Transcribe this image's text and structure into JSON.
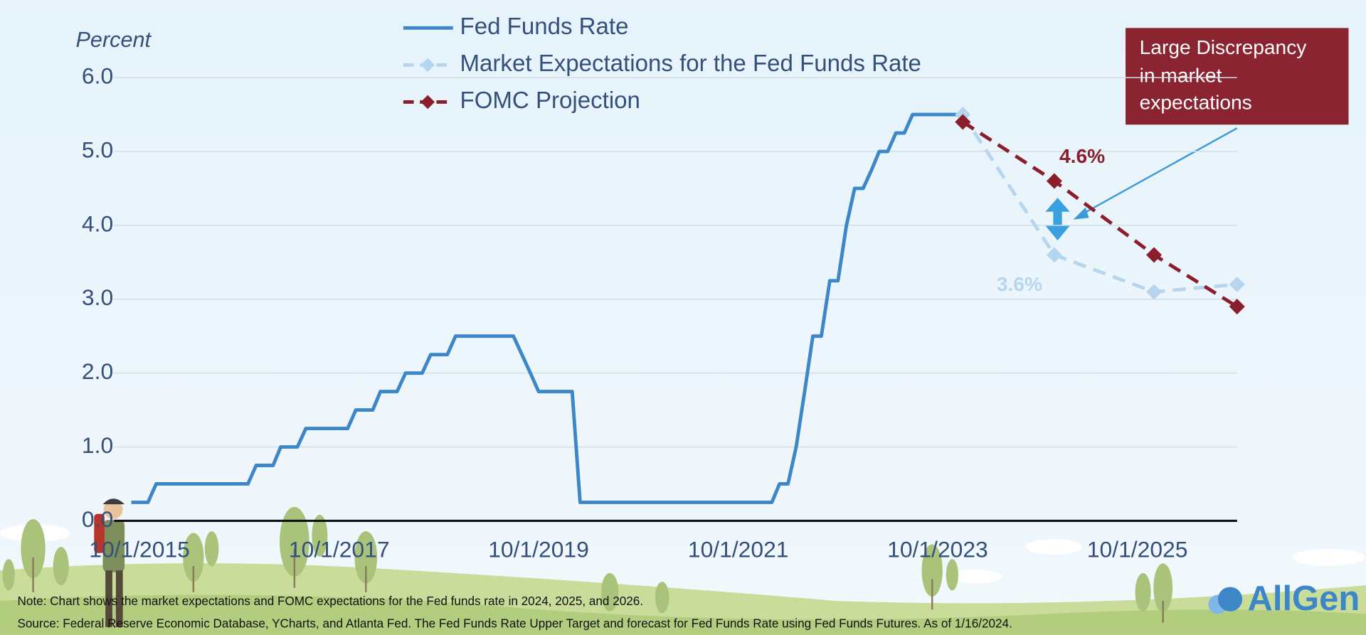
{
  "chart_data": {
    "type": "line",
    "y_label": "Percent",
    "xlim": [
      "2015-08-01",
      "2026-10-01"
    ],
    "xticks": [
      {
        "value": "2015-10-01",
        "label": "10/1/2015"
      },
      {
        "value": "2017-10-01",
        "label": "10/1/2017"
      },
      {
        "value": "2019-10-01",
        "label": "10/1/2019"
      },
      {
        "value": "2021-10-01",
        "label": "10/1/2021"
      },
      {
        "value": "2023-10-01",
        "label": "10/1/2023"
      },
      {
        "value": "2025-10-01",
        "label": "10/1/2025"
      }
    ],
    "ylim": [
      0,
      6
    ],
    "yticks": [
      {
        "value": 0,
        "label": "0.0"
      },
      {
        "value": 1,
        "label": "1.0"
      },
      {
        "value": 2,
        "label": "2.0"
      },
      {
        "value": 3,
        "label": "3.0"
      },
      {
        "value": 4,
        "label": "4.0"
      },
      {
        "value": 5,
        "label": "5.0"
      },
      {
        "value": 6,
        "label": "6.0"
      }
    ],
    "grid": true,
    "legend_position": "top-center",
    "series": [
      {
        "name": "Fed Funds Rate",
        "color": "#3d86c8",
        "dashed": false,
        "marker": null,
        "x": [
          "2015-09-01",
          "2015-11-01",
          "2015-12-01",
          "2016-11-01",
          "2016-12-01",
          "2017-02-01",
          "2017-03-01",
          "2017-05-01",
          "2017-06-01",
          "2017-11-01",
          "2017-12-01",
          "2018-02-01",
          "2018-03-01",
          "2018-05-01",
          "2018-06-01",
          "2018-08-01",
          "2018-09-01",
          "2018-11-01",
          "2018-12-01",
          "2019-07-01",
          "2019-08-01",
          "2019-09-01",
          "2019-10-01",
          "2020-02-01",
          "2020-03-01",
          "2022-02-01",
          "2022-03-01",
          "2022-04-01",
          "2022-05-01",
          "2022-06-01",
          "2022-07-01",
          "2022-08-01",
          "2022-09-01",
          "2022-10-01",
          "2022-11-01",
          "2022-12-01",
          "2023-01-01",
          "2023-02-01",
          "2023-03-01",
          "2023-04-01",
          "2023-05-01",
          "2023-06-01",
          "2023-07-01",
          "2024-01-01"
        ],
        "values": [
          0.25,
          0.25,
          0.5,
          0.5,
          0.75,
          0.75,
          1.0,
          1.0,
          1.25,
          1.25,
          1.5,
          1.5,
          1.75,
          1.75,
          2.0,
          2.0,
          2.25,
          2.25,
          2.5,
          2.5,
          2.25,
          2.0,
          1.75,
          1.75,
          0.25,
          0.25,
          0.5,
          0.5,
          1.0,
          1.75,
          2.5,
          2.5,
          3.25,
          3.25,
          4.0,
          4.5,
          4.5,
          4.75,
          5.0,
          5.0,
          5.25,
          5.25,
          5.5,
          5.5
        ]
      },
      {
        "name": "Market Expectations for the Fed Funds Rate",
        "color": "#b6d6f0",
        "dashed": true,
        "marker": "diamond",
        "x": [
          "2024-01-01",
          "2024-12-01",
          "2025-12-01",
          "2026-10-01"
        ],
        "values": [
          5.5,
          3.6,
          3.1,
          3.2
        ],
        "value_labels": [
          null,
          "3.6%",
          null,
          null
        ]
      },
      {
        "name": "FOMC Projection",
        "color": "#8b1e2c",
        "dashed": true,
        "marker": "diamond",
        "x": [
          "2024-01-01",
          "2024-12-01",
          "2025-12-01",
          "2026-10-01"
        ],
        "values": [
          5.4,
          4.6,
          3.6,
          2.9
        ],
        "value_labels": [
          null,
          "4.6%",
          null,
          null
        ]
      }
    ],
    "annotation": {
      "lines": [
        "Large Discrepancy",
        "in market",
        "expectations"
      ]
    },
    "notes": [
      "Note: Chart shows the market expectations and FOMC expectations for the Fed funds rate in 2024, 2025, and 2026.",
      "Source: Federal Reserve Economic Database, YCharts, and Atlanta Fed. The Fed Funds Rate Upper Target and forecast for Fed Funds Rate using Fed Funds Futures. As of 1/16/2024."
    ],
    "brand": "AllGen"
  }
}
